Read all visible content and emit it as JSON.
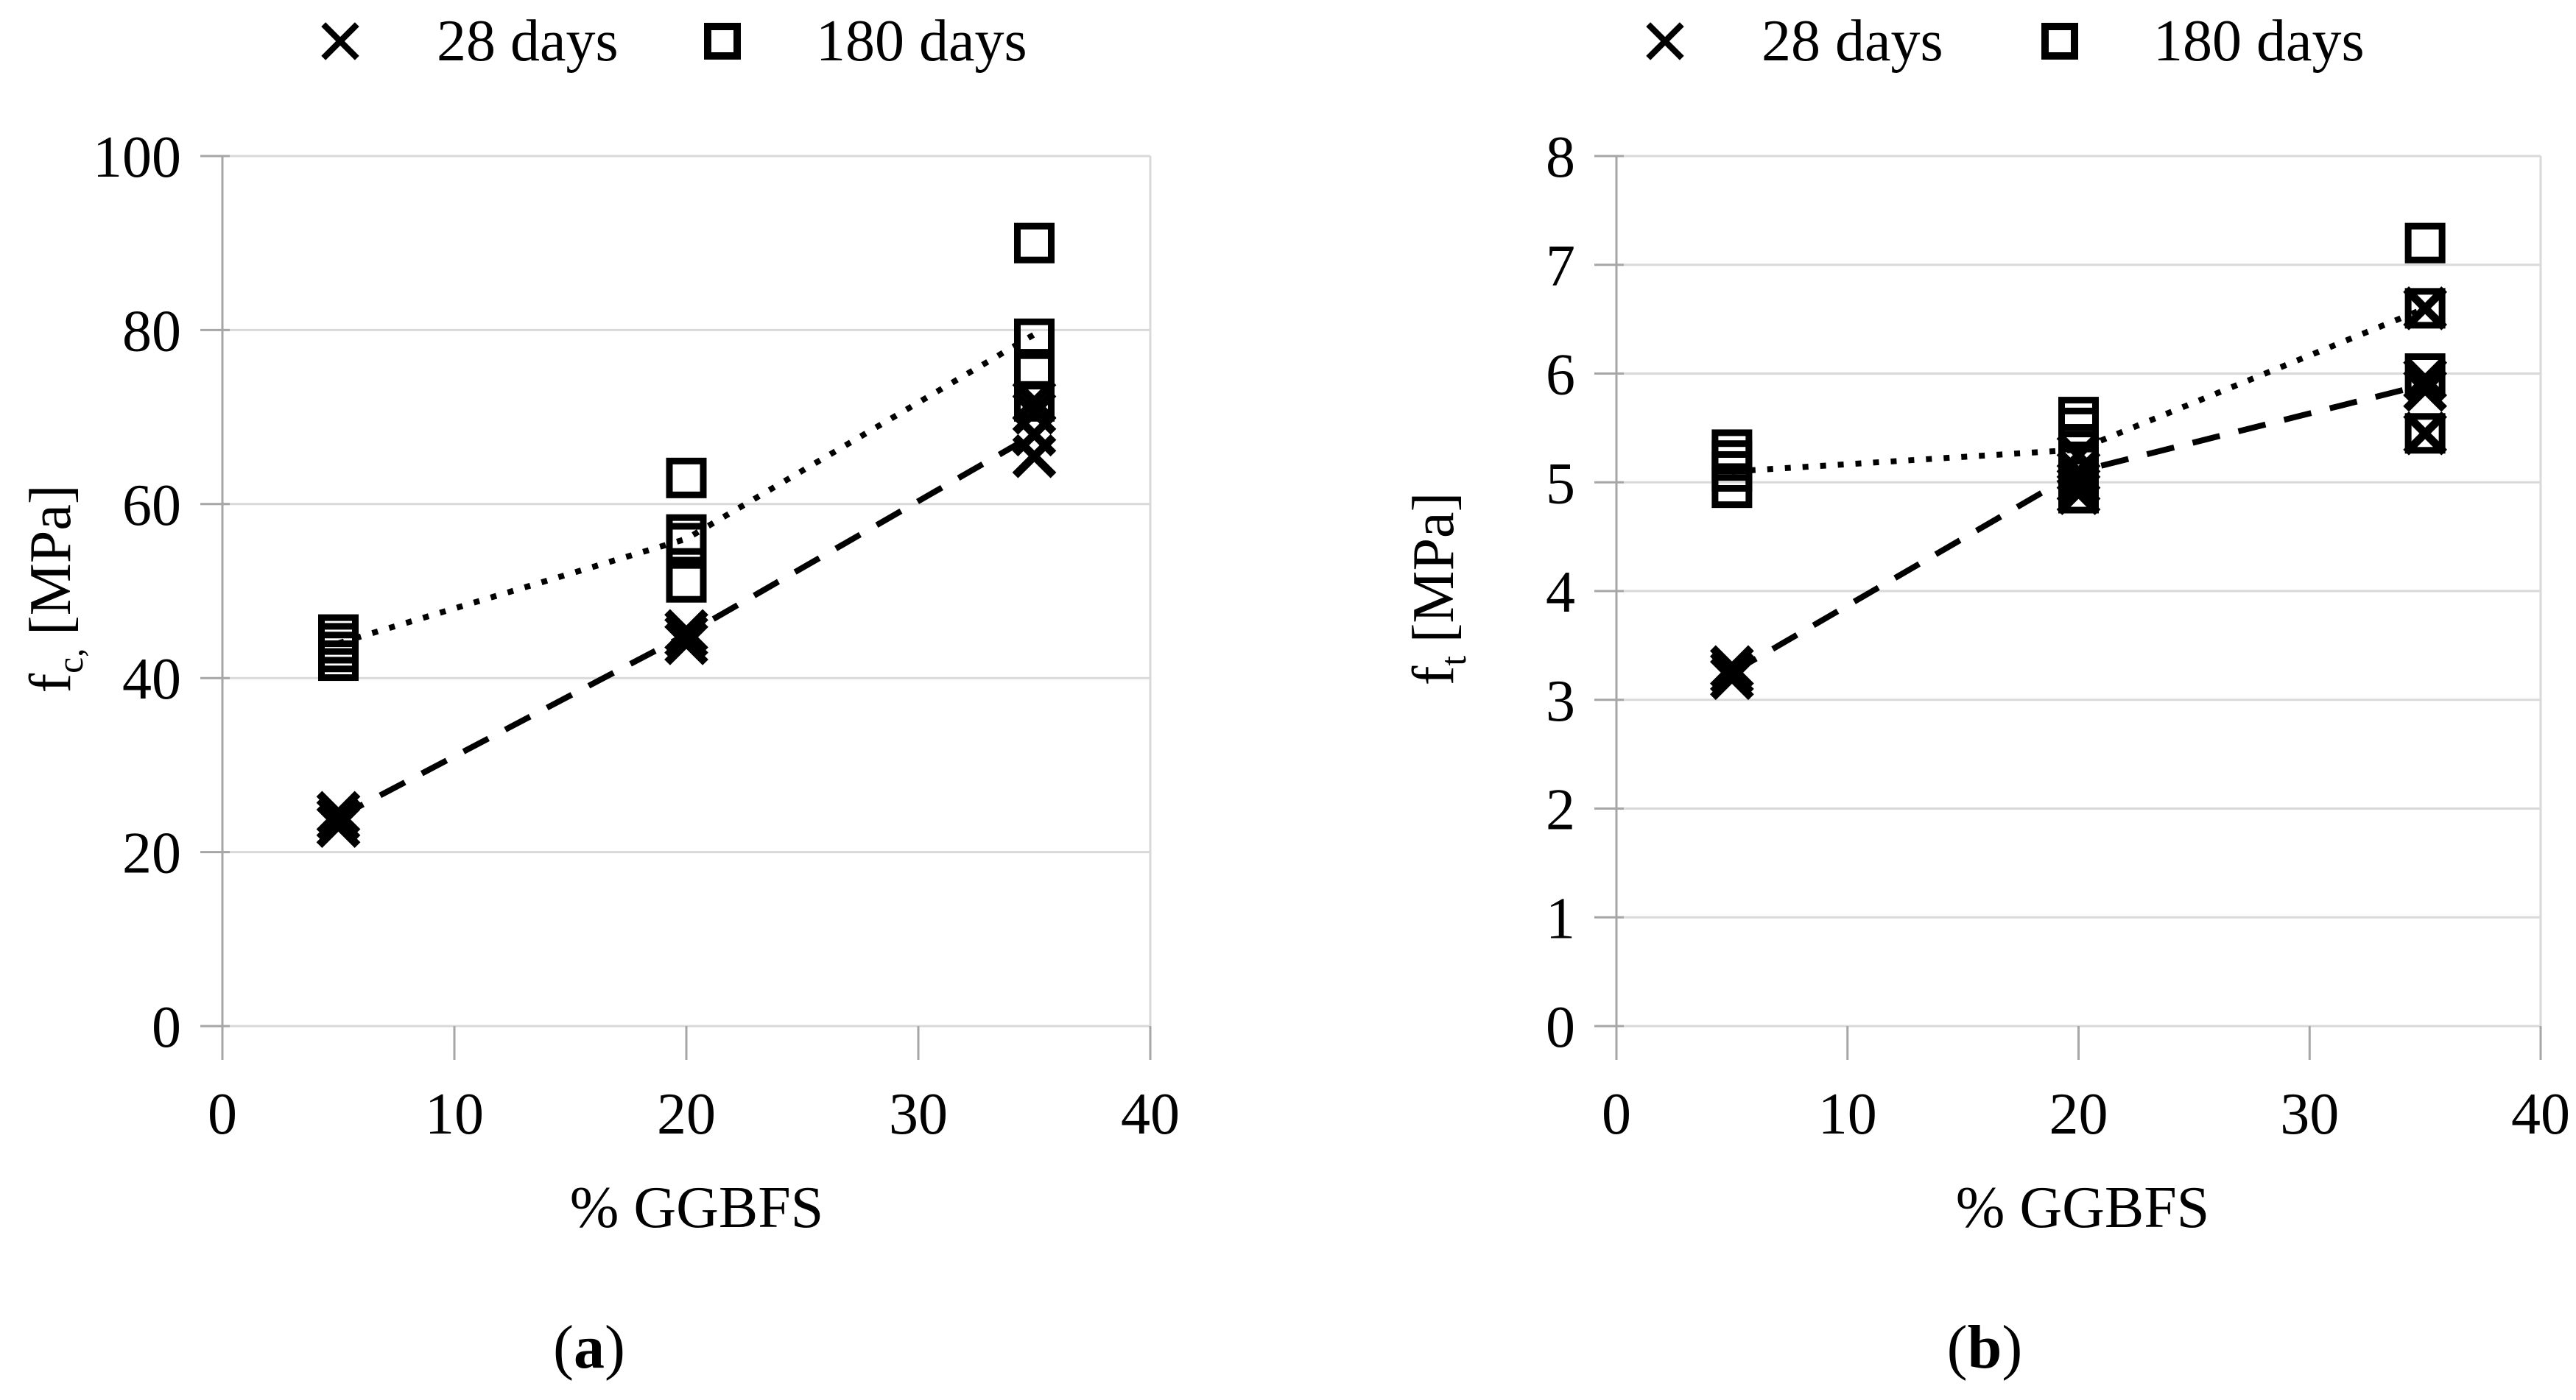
{
  "figure": {
    "background_color": "#ffffff",
    "text_color": "#000000",
    "gridline_color": "#d9d9d9",
    "axis_color": "#a6a6a6",
    "marker_color": "#000000"
  },
  "legend": {
    "items": [
      {
        "label": "28 days",
        "marker": "x-marker"
      },
      {
        "label": "180 days",
        "marker": "square-marker"
      }
    ]
  },
  "chart_data": [
    {
      "type": "scatter",
      "panel": "a",
      "caption": {
        "open": "(",
        "letter": "a",
        "close": ")"
      },
      "xlabel": "% GGBFS",
      "ylabel": "f_c, [MPa]",
      "ylabel_parts": {
        "base": "f",
        "sub": "c,",
        "unit": "[MPa]"
      },
      "xlim": [
        0,
        40
      ],
      "ylim": [
        0,
        100
      ],
      "xticks": [
        0,
        10,
        20,
        30,
        40
      ],
      "yticks": [
        0,
        20,
        40,
        60,
        80,
        100
      ],
      "grid": "horizontal",
      "legend_position": "top",
      "series": [
        {
          "name": "28 days",
          "marker": "x",
          "trend_style": "dashed",
          "points": [
            [
              5,
              23
            ],
            [
              5,
              23.8
            ],
            [
              5,
              24.5
            ],
            [
              20,
              44
            ],
            [
              20,
              44.8
            ],
            [
              20,
              45.4
            ],
            [
              35,
              65.5
            ],
            [
              35,
              68
            ],
            [
              35,
              70.5
            ],
            [
              35,
              71.8
            ]
          ],
          "trend": [
            [
              5,
              24
            ],
            [
              20,
              45
            ],
            [
              35,
              68
            ]
          ]
        },
        {
          "name": "180 days",
          "marker": "square",
          "trend_style": "dotted",
          "points": [
            [
              5,
              42
            ],
            [
              5,
              43
            ],
            [
              5,
              44
            ],
            [
              5,
              45
            ],
            [
              20,
              51
            ],
            [
              20,
              55.5
            ],
            [
              20,
              56.5
            ],
            [
              20,
              63
            ],
            [
              35,
              71.8
            ],
            [
              35,
              75.5
            ],
            [
              35,
              79
            ],
            [
              35,
              90
            ]
          ],
          "trend": [
            [
              5,
              44
            ],
            [
              20,
              56
            ],
            [
              35,
              79.5
            ]
          ]
        }
      ]
    },
    {
      "type": "scatter",
      "panel": "b",
      "caption": {
        "open": "(",
        "letter": "b",
        "close": ")"
      },
      "xlabel": "% GGBFS",
      "ylabel": "f_t [MPa]",
      "ylabel_parts": {
        "base": "f",
        "sub": "t",
        "unit": "[MPa]"
      },
      "xlim": [
        0,
        40
      ],
      "ylim": [
        0,
        8
      ],
      "xticks": [
        0,
        10,
        20,
        30,
        40
      ],
      "yticks": [
        0,
        1,
        2,
        3,
        4,
        5,
        6,
        7,
        8
      ],
      "grid": "horizontal",
      "legend_position": "top",
      "series": [
        {
          "name": "28 days",
          "marker": "x",
          "trend_style": "dashed",
          "points": [
            [
              5,
              3.2
            ],
            [
              5,
              3.25
            ],
            [
              5,
              3.3
            ],
            [
              20,
              4.9
            ],
            [
              20,
              5.0
            ],
            [
              20,
              5.1
            ],
            [
              20,
              5.25
            ],
            [
              35,
              5.45
            ],
            [
              35,
              5.85
            ],
            [
              35,
              5.95
            ],
            [
              35,
              6.6
            ]
          ],
          "trend": [
            [
              5,
              3.25
            ],
            [
              20,
              5.1
            ],
            [
              35,
              5.9
            ]
          ]
        },
        {
          "name": "180 days",
          "marker": "square",
          "trend_style": "dotted",
          "points": [
            [
              5,
              4.95
            ],
            [
              5,
              5.1
            ],
            [
              5,
              5.2
            ],
            [
              5,
              5.3
            ],
            [
              20,
              4.9
            ],
            [
              20,
              5.15
            ],
            [
              20,
              5.35
            ],
            [
              20,
              5.5
            ],
            [
              20,
              5.6
            ],
            [
              35,
              5.45
            ],
            [
              35,
              6.0
            ],
            [
              35,
              6.6
            ],
            [
              35,
              7.2
            ]
          ],
          "trend": [
            [
              5,
              5.1
            ],
            [
              20,
              5.3
            ],
            [
              35,
              6.6
            ]
          ]
        }
      ]
    }
  ]
}
